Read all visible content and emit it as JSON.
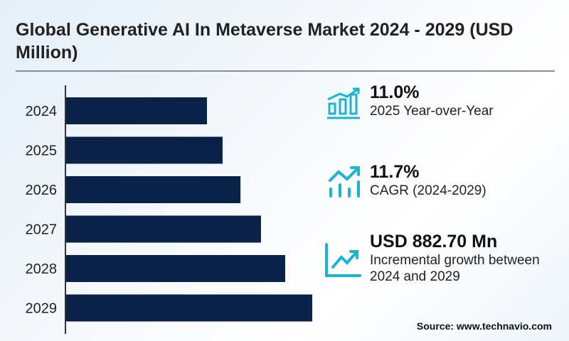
{
  "title": "Global Generative AI In Metaverse Market 2024 - 2029 (USD Million)",
  "chart_data": {
    "type": "bar",
    "orientation": "horizontal",
    "title": "Global Generative AI In Metaverse Market 2024 - 2029 (USD Million)",
    "categories": [
      "2024",
      "2025",
      "2026",
      "2027",
      "2028",
      "2029"
    ],
    "values": [
      1181,
      1312,
      1462,
      1634,
      1837,
      2064
    ],
    "xlabel": "",
    "ylabel": "",
    "xlim": [
      0,
      2400
    ],
    "grid": false,
    "bar_color": "#0b2248"
  },
  "stats": [
    {
      "value": "11.0%",
      "label": "2025 Year-over-Year",
      "icon": "bar-chart-growth-icon"
    },
    {
      "value": "11.7%",
      "label": "CAGR (2024-2029)",
      "icon": "trend-up-bars-icon"
    },
    {
      "value": "USD 882.70 Mn",
      "label": "Incremental growth between 2024 and 2029",
      "icon": "line-chart-up-icon"
    }
  ],
  "accent_color": "#1ab3d3",
  "source": "Source: www.technavio.com"
}
